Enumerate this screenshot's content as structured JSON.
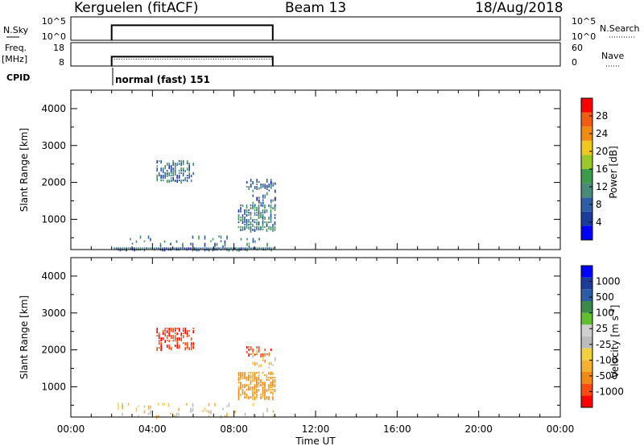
{
  "header": {
    "station": "Kerguelen (fitACF)",
    "beam": "Beam 13",
    "date": "18/Aug/2018"
  },
  "strips": {
    "nsky": {
      "label": "N.Sky",
      "ticks_left": [
        "10^5",
        "10^0"
      ],
      "ticks_right": [
        "10^5",
        "10^0"
      ],
      "right_label": "N.Search"
    },
    "freq": {
      "label": "Freq.",
      "unit": "[MHz]",
      "ticks_left": [
        "18",
        "8"
      ],
      "ticks_right": [
        "60",
        "0"
      ],
      "right_label": "Nave"
    },
    "cpid": {
      "label": "CPID",
      "mode": "normal (fast) 151"
    }
  },
  "colors": {
    "power": [
      "#0000ff",
      "#1c3c9c",
      "#2e5da8",
      "#4a8a78",
      "#3c9c4c",
      "#9ac82a",
      "#f0c81a",
      "#f08a10",
      "#ef5c12",
      "#ff0000"
    ],
    "velocity": [
      "#ff0000",
      "#ff4a10",
      "#f08a10",
      "#f5b030",
      "#f2d040",
      "#bcbcbc",
      "#cfcfcf",
      "#5fbf2f",
      "#3a8a4a",
      "#2e5da8",
      "#1c3c9c",
      "#0000ff"
    ]
  },
  "chart_data": [
    {
      "type": "heatmap",
      "name": "power",
      "xlabel": "",
      "ylabel": "Slant Range [km]",
      "xlim": [
        0,
        24
      ],
      "ylim": [
        180,
        4500
      ],
      "yticks": [
        "1000",
        "2000",
        "3000",
        "4000"
      ],
      "colorbar_label": "Power [dB]",
      "colorbar_ticks": [
        "4",
        "8",
        "12",
        "16",
        "20",
        "24",
        "28"
      ],
      "colorbar_range": [
        0,
        32
      ],
      "regions": [
        {
          "t": [
            2.1,
            9.9
          ],
          "r": [
            180,
            560
          ],
          "value": 10,
          "density": 0.1
        },
        {
          "t": [
            4.2,
            6.0
          ],
          "r": [
            2050,
            2600
          ],
          "value": 9,
          "density": 0.55
        },
        {
          "t": [
            8.6,
            9.8
          ],
          "r": [
            1850,
            2100
          ],
          "value": 8,
          "density": 0.45
        },
        {
          "t": [
            8.2,
            10.0
          ],
          "r": [
            700,
            1400
          ],
          "value": 10,
          "density": 0.65
        },
        {
          "t": [
            8.9,
            10.0
          ],
          "r": [
            1400,
            2000
          ],
          "value": 8,
          "density": 0.2
        },
        {
          "t": [
            2.1,
            9.9
          ],
          "r": [
            180,
            240
          ],
          "value": 8,
          "density": 1.0
        }
      ]
    },
    {
      "type": "heatmap",
      "name": "velocity",
      "xlabel": "Time UT",
      "ylabel": "Slant Range [km]",
      "xlim": [
        0,
        24
      ],
      "ylim": [
        180,
        4500
      ],
      "xticks": [
        "00:00",
        "04:00",
        "08:00",
        "12:00",
        "16:00",
        "20:00",
        "00:00"
      ],
      "yticks": [
        "1000",
        "2000",
        "3000",
        "4000"
      ],
      "colorbar_label": "Velocity [m s^-1]",
      "colorbar_ticks": [
        "1000",
        "500",
        "100",
        "25",
        "-25",
        "-100",
        "-500",
        "-1000"
      ],
      "regions": [
        {
          "t": [
            2.1,
            9.9
          ],
          "r": [
            180,
            560
          ],
          "value": -40,
          "density": 0.1
        },
        {
          "t": [
            4.2,
            6.0
          ],
          "r": [
            2050,
            2600
          ],
          "value": -900,
          "density": 0.55
        },
        {
          "t": [
            8.6,
            9.8
          ],
          "r": [
            1850,
            2100
          ],
          "value": -900,
          "density": 0.45
        },
        {
          "t": [
            8.2,
            10.0
          ],
          "r": [
            700,
            1400
          ],
          "value": -150,
          "density": 0.65
        },
        {
          "t": [
            8.9,
            10.0
          ],
          "r": [
            1400,
            2000
          ],
          "value": -60,
          "density": 0.2
        }
      ]
    },
    {
      "type": "line",
      "name": "nsky",
      "x": [
        2.0,
        2.0,
        9.9,
        9.9
      ],
      "y": [
        0,
        3.2,
        3.2,
        0
      ],
      "ylim": [
        0,
        5
      ]
    },
    {
      "type": "line",
      "name": "frequency",
      "x": [
        2.0,
        2.0,
        9.9,
        9.9
      ],
      "y": [
        8,
        12,
        12,
        8
      ],
      "ylim": [
        8,
        18
      ]
    }
  ]
}
